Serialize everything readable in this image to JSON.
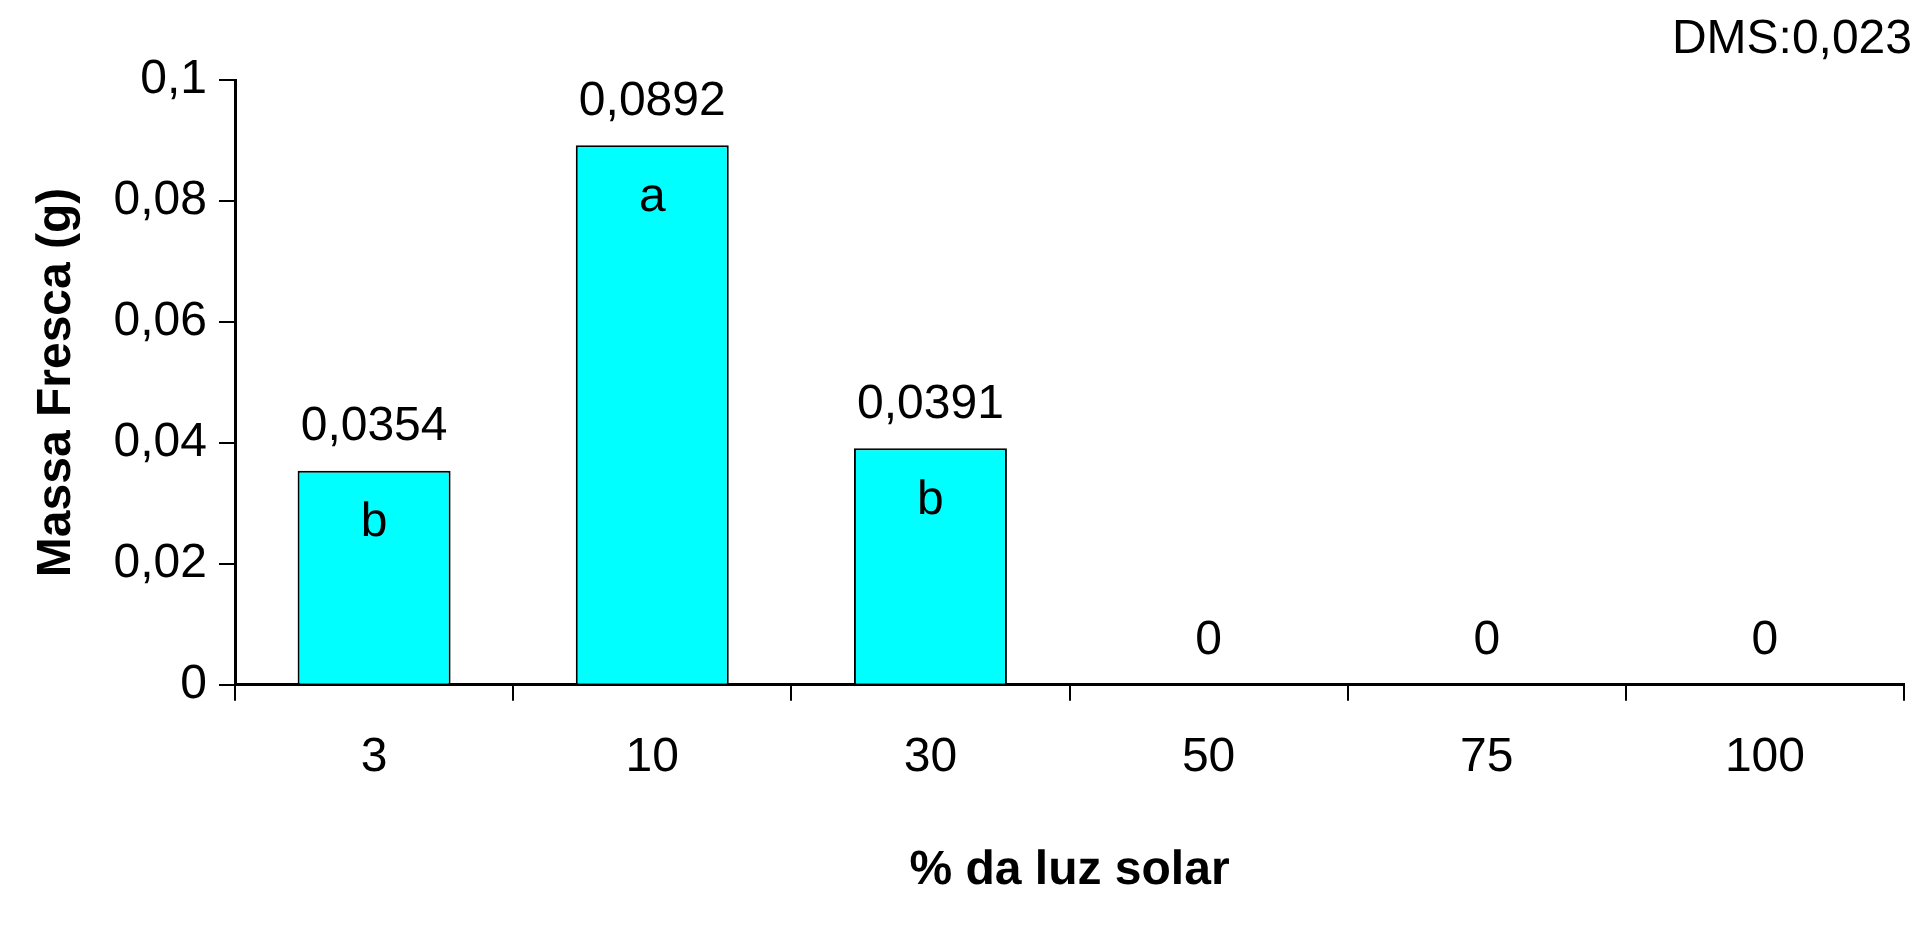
{
  "chart_data": {
    "type": "bar",
    "xlabel": "% da luz solar",
    "ylabel": "Massa Fresca (g)",
    "categories": [
      "3",
      "10",
      "30",
      "50",
      "75",
      "100"
    ],
    "values": [
      0.0354,
      0.0892,
      0.0391,
      0,
      0,
      0
    ],
    "value_labels": [
      "0,0354",
      "0,0892",
      "0,0391",
      "0",
      "0",
      "0"
    ],
    "color": "#00ffff",
    "ylim": [
      0,
      0.1
    ],
    "yticks": [
      {
        "value": 0,
        "label": "0"
      },
      {
        "value": 0.02,
        "label": "0,02"
      },
      {
        "value": 0.04,
        "label": "0,04"
      },
      {
        "value": 0.06,
        "label": "0,06"
      },
      {
        "value": 0.08,
        "label": "0,08"
      },
      {
        "value": 0.1,
        "label": "0,1"
      }
    ],
    "grid": false,
    "legend": false,
    "annotations": [
      "DMS:0,023",
      "b",
      "a",
      "b"
    ]
  }
}
